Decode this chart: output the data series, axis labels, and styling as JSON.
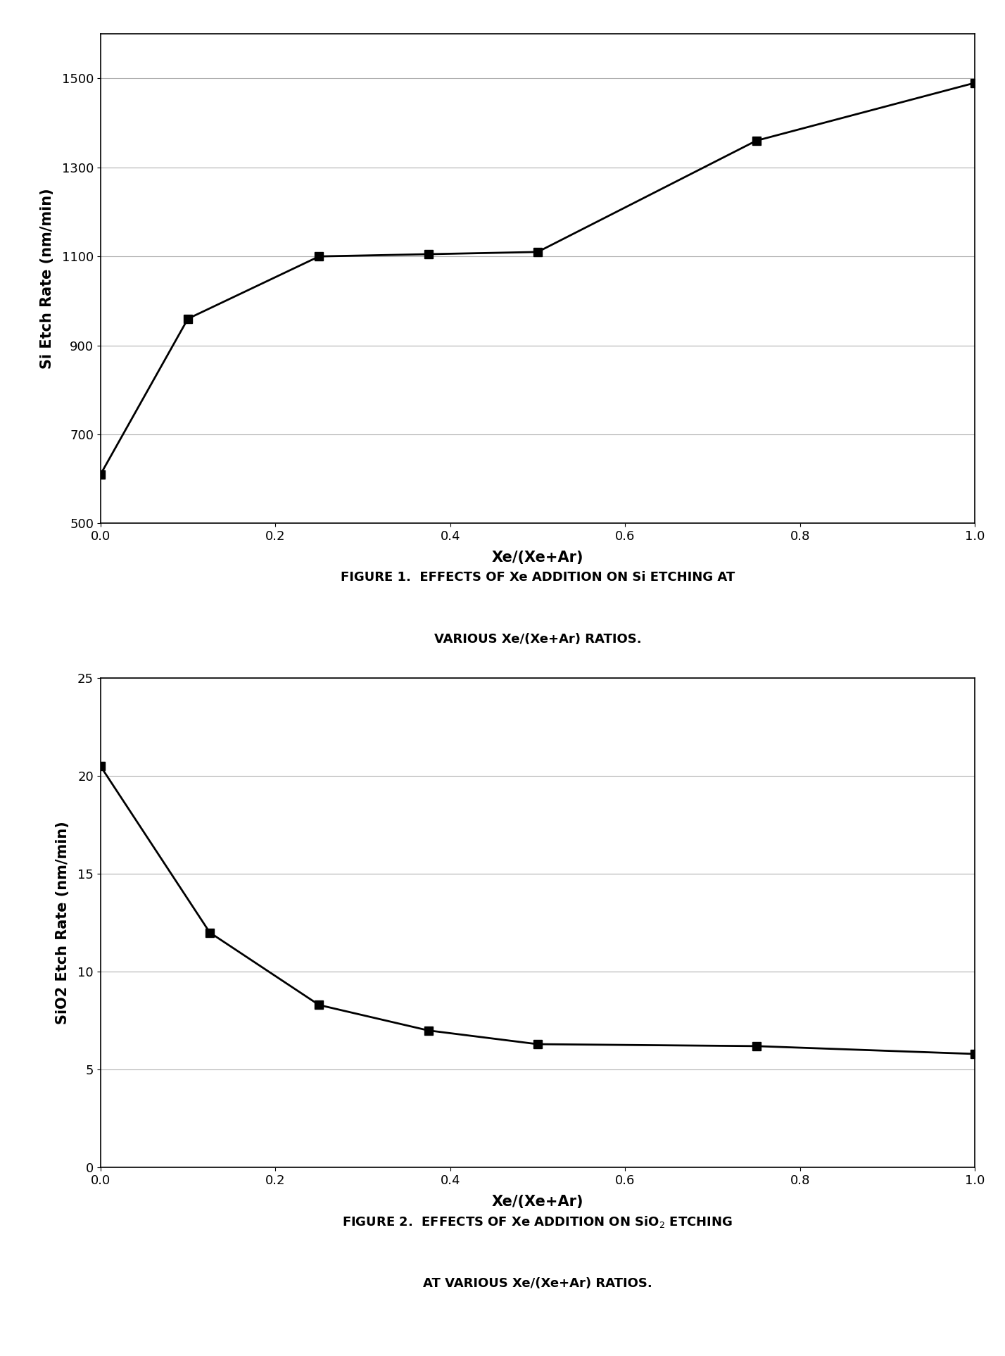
{
  "fig1": {
    "x": [
      0.0,
      0.1,
      0.25,
      0.375,
      0.5,
      0.75,
      1.0
    ],
    "y": [
      610,
      960,
      1100,
      1105,
      1110,
      1360,
      1490
    ],
    "xlabel": "Xe/(Xe+Ar)",
    "ylabel": "Si Etch Rate (nm/min)",
    "xlim": [
      0.0,
      1.0
    ],
    "ylim": [
      500,
      1600
    ],
    "yticks": [
      500,
      700,
      900,
      1100,
      1300,
      1500
    ],
    "xticks": [
      0.0,
      0.2,
      0.4,
      0.6,
      0.8,
      1.0
    ],
    "caption_line1": "FIGURE 1.  EFFECTS OF Xe ADDITION ON Si ETCHING AT",
    "caption_line2": "VARIOUS Xe/(Xe+Ar) RATIOS."
  },
  "fig2": {
    "x": [
      0.0,
      0.125,
      0.25,
      0.375,
      0.5,
      0.75,
      1.0
    ],
    "y": [
      20.5,
      12.0,
      8.3,
      7.0,
      6.3,
      6.2,
      5.8
    ],
    "xlabel": "Xe/(Xe+Ar)",
    "ylabel": "SiO2 Etch Rate (nm/min)",
    "xlim": [
      0.0,
      1.0
    ],
    "ylim": [
      0,
      25
    ],
    "yticks": [
      0,
      5,
      10,
      15,
      20,
      25
    ],
    "xticks": [
      0.0,
      0.2,
      0.4,
      0.6,
      0.8,
      1.0
    ],
    "caption_line1": "FIGURE 2.  EFFECTS OF Xe ADDITION ON SiO$_2$ ETCHING",
    "caption_line2": "AT VARIOUS Xe/(Xe+Ar) RATIOS."
  },
  "background_color": "#ffffff",
  "line_color": "#000000",
  "marker": "s",
  "marker_size": 8,
  "line_width": 2.0,
  "grid_color": "#b0b0b0",
  "box_color": "#000000",
  "caption_fontsize": 13,
  "axis_label_fontsize": 15,
  "tick_fontsize": 13
}
